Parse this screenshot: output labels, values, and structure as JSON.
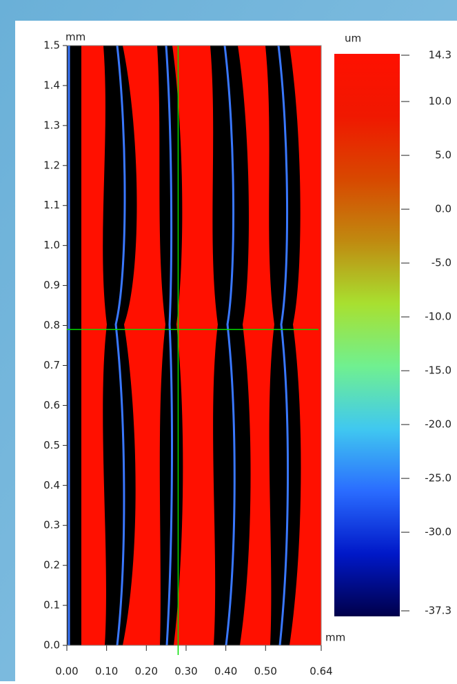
{
  "chart_data": {
    "type": "heatmap",
    "x_unit": "mm",
    "y_unit": "mm",
    "colorbar_unit": "um",
    "xlim": [
      0,
      0.64
    ],
    "xticks": [
      {
        "value": 0,
        "label": "0.00"
      },
      {
        "value": 0.1,
        "label": "0.10"
      },
      {
        "value": 0.2,
        "label": "0.20"
      },
      {
        "value": 0.3,
        "label": "0.30"
      },
      {
        "value": 0.4,
        "label": "0.40"
      },
      {
        "value": 0.5,
        "label": "0.50"
      },
      0.64
    ],
    "ylim": [
      0,
      1.5
    ],
    "yticks": [
      {
        "value": 0,
        "label": "0.0"
      },
      0.1,
      0.2,
      0.3,
      0.4,
      0.5,
      0.6,
      0.7,
      0.8,
      0.9,
      {
        "value": 1,
        "label": "1.0"
      },
      1.1,
      1.2,
      1.3,
      1.4,
      1.5
    ],
    "clim": [
      -37.3,
      14.3
    ],
    "cticks": [
      14.3,
      {
        "value": 10,
        "label": "10.0"
      },
      {
        "value": 5,
        "label": "5.0"
      },
      {
        "value": 0,
        "label": "0.0"
      },
      {
        "value": -5,
        "label": "-5.0"
      },
      {
        "value": -10,
        "label": "-10.0"
      },
      {
        "value": -15,
        "label": "-15.0"
      },
      {
        "value": -20,
        "label": "-20.0"
      },
      {
        "value": -25,
        "label": "-25.0"
      },
      {
        "value": -30,
        "label": "-30.0"
      },
      -37.3
    ],
    "colormap": [
      "#00004a",
      "#0018c8",
      "#2a6cff",
      "#40c8f0",
      "#70f090",
      "#a8e030",
      "#c08a10",
      "#d84800",
      "#f01800",
      "#ff1000"
    ],
    "cursor": {
      "x": 0.28,
      "y": 0.79,
      "color": "#00e000"
    }
  }
}
